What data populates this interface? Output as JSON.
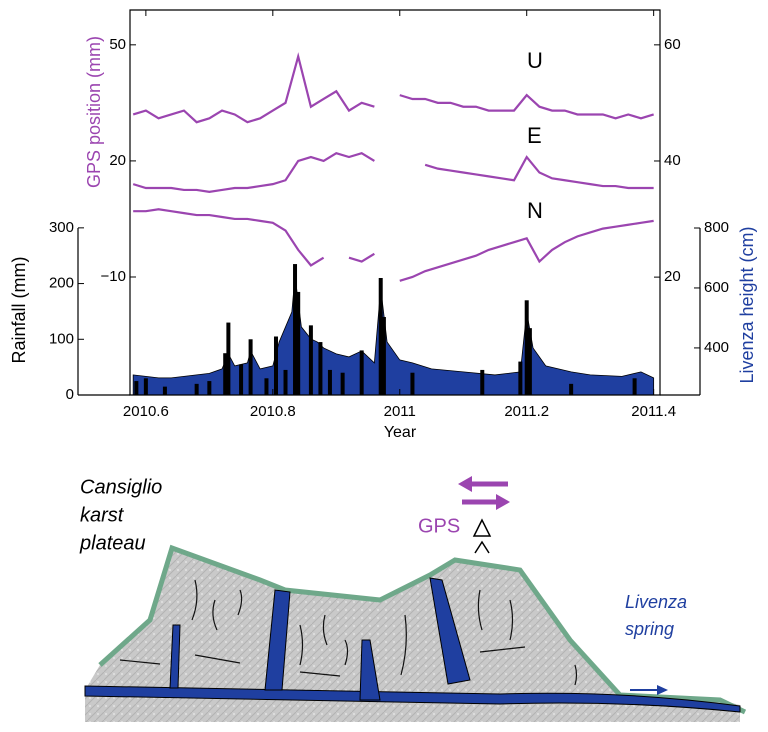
{
  "chart_data": {
    "type": "line",
    "xlabel": "Year",
    "xlim": [
      2010.575,
      2011.41
    ],
    "xticks": [
      2010.6,
      2010.8,
      2011,
      2011.2,
      2011.4
    ],
    "ylabel": "GPS position (mm)",
    "ylim": [
      -40.5,
      59
    ],
    "yticks": [
      50,
      20,
      {
        "value": -10,
        "label": "−10"
      }
    ],
    "y2lim": [
      -0.3,
      66
    ],
    "y2ticks": [
      60,
      40,
      20
    ],
    "y3label": "Rainfall (mm)",
    "y3lim": [
      0,
      691
    ],
    "y3ticks": [
      0,
      100,
      200,
      300
    ],
    "y4label": "Livenza height (cm)",
    "y4lim": [
      243,
      1527
    ],
    "y4ticks": [
      400,
      600,
      800
    ],
    "series": [
      {
        "name": "U",
        "type": "line",
        "color": "#9b45b0",
        "x": [
          2010.58,
          2010.6,
          2010.62,
          2010.64,
          2010.66,
          2010.68,
          2010.7,
          2010.72,
          2010.74,
          2010.76,
          2010.78,
          2010.8,
          2010.82,
          2010.84,
          2010.86,
          2010.88,
          2010.9,
          2010.92,
          2010.94,
          2010.96,
          2010.98,
          2011.0,
          2011.02,
          2011.04,
          2011.06,
          2011.08,
          2011.1,
          2011.12,
          2011.14,
          2011.16,
          2011.18,
          2011.2,
          2011.22,
          2011.24,
          2011.26,
          2011.28,
          2011.3,
          2011.32,
          2011.34,
          2011.36,
          2011.38,
          2011.4
        ],
        "values": [
          32,
          33,
          31,
          32,
          33,
          30,
          31,
          33,
          32,
          30,
          31,
          33,
          35,
          47,
          34,
          36,
          38,
          33,
          35,
          34,
          null,
          37,
          36,
          36,
          35,
          35,
          34,
          34,
          33,
          33,
          33,
          37,
          34,
          33,
          33,
          32,
          32,
          32,
          31,
          32,
          31,
          32
        ]
      },
      {
        "name": "E",
        "type": "line",
        "color": "#9b45b0",
        "x": [
          2010.58,
          2010.6,
          2010.62,
          2010.64,
          2010.66,
          2010.68,
          2010.7,
          2010.72,
          2010.74,
          2010.76,
          2010.78,
          2010.8,
          2010.82,
          2010.84,
          2010.86,
          2010.88,
          2010.9,
          2010.92,
          2010.94,
          2010.96,
          2010.98,
          2011.0,
          2011.02,
          2011.04,
          2011.06,
          2011.08,
          2011.1,
          2011.12,
          2011.14,
          2011.16,
          2011.18,
          2011.2,
          2011.22,
          2011.24,
          2011.26,
          2011.28,
          2011.3,
          2011.32,
          2011.34,
          2011.36,
          2011.38,
          2011.4
        ],
        "values": [
          14,
          13,
          13,
          13,
          12.5,
          12.5,
          12,
          12.5,
          13,
          13,
          13.5,
          14,
          15,
          20,
          21,
          20,
          22,
          21,
          22,
          20,
          null,
          25,
          null,
          19,
          18,
          17.5,
          17,
          16.5,
          16,
          15.5,
          15,
          21,
          17,
          15.5,
          15,
          14.5,
          14,
          13.5,
          13.5,
          13,
          13,
          13
        ]
      },
      {
        "name": "N",
        "type": "line",
        "color": "#9b45b0",
        "x": [
          2010.58,
          2010.6,
          2010.62,
          2010.64,
          2010.66,
          2010.68,
          2010.7,
          2010.72,
          2010.74,
          2010.76,
          2010.78,
          2010.8,
          2010.82,
          2010.84,
          2010.86,
          2010.88,
          2010.9,
          2010.92,
          2010.94,
          2010.96,
          2010.98,
          2011.0,
          2011.02,
          2011.04,
          2011.06,
          2011.08,
          2011.1,
          2011.12,
          2011.14,
          2011.16,
          2011.18,
          2011.2,
          2011.22,
          2011.24,
          2011.26,
          2011.28,
          2011.3,
          2011.32,
          2011.34,
          2011.36,
          2011.38,
          2011.4
        ],
        "values": [
          7,
          7,
          7.5,
          7,
          6.5,
          6,
          6,
          5.5,
          5,
          5,
          4.5,
          4,
          2,
          -3,
          -7,
          -5,
          null,
          -5,
          -6,
          -4,
          null,
          -11,
          -10,
          -8.5,
          -7.5,
          -6.5,
          -5.5,
          -4.5,
          -3,
          -2,
          -1,
          0,
          -6,
          -3,
          -1,
          0.5,
          1.5,
          2.5,
          3,
          3.5,
          4,
          4.5
        ]
      },
      {
        "type": "area",
        "axis": "y4",
        "color": "#1f3fa0",
        "x": [
          2010.58,
          2010.6,
          2010.62,
          2010.64,
          2010.66,
          2010.68,
          2010.7,
          2010.72,
          2010.73,
          2010.74,
          2010.76,
          2010.765,
          2010.78,
          2010.8,
          2010.81,
          2010.83,
          2010.835,
          2010.845,
          2010.86,
          2010.87,
          2010.88,
          2010.9,
          2010.92,
          2010.94,
          2010.96,
          2010.97,
          2010.98,
          2011.0,
          2011.02,
          2011.05,
          2011.1,
          2011.15,
          2011.19,
          2011.2,
          2011.21,
          2011.23,
          2011.27,
          2011.3,
          2011.35,
          2011.38,
          2011.4
        ],
        "values": [
          310,
          305,
          300,
          300,
          305,
          310,
          315,
          330,
          380,
          340,
          350,
          390,
          330,
          340,
          420,
          520,
          640,
          470,
          430,
          420,
          400,
          380,
          370,
          390,
          350,
          600,
          420,
          360,
          350,
          330,
          320,
          310,
          320,
          520,
          400,
          340,
          320,
          310,
          305,
          320,
          300
        ]
      },
      {
        "type": "bar",
        "axis": "y3",
        "color": "#000000",
        "x": [
          2010.585,
          2010.6,
          2010.63,
          2010.68,
          2010.7,
          2010.725,
          2010.73,
          2010.75,
          2010.765,
          2010.79,
          2010.805,
          2010.82,
          2010.835,
          2010.84,
          2010.86,
          2010.875,
          2010.89,
          2010.91,
          2010.94,
          2010.97,
          2010.975,
          2011.02,
          2011.13,
          2011.19,
          2011.2,
          2011.205,
          2011.27,
          2011.37
        ],
        "values": [
          25,
          30,
          15,
          20,
          25,
          75,
          130,
          55,
          100,
          30,
          105,
          45,
          235,
          185,
          125,
          95,
          45,
          40,
          80,
          210,
          140,
          40,
          45,
          60,
          170,
          120,
          20,
          30
        ]
      }
    ]
  },
  "diagram": {
    "plateau_label": [
      "Cansiglio",
      "karst",
      "plateau"
    ],
    "gps_label": "GPS",
    "spring_label": [
      "Livenza",
      "spring"
    ]
  }
}
